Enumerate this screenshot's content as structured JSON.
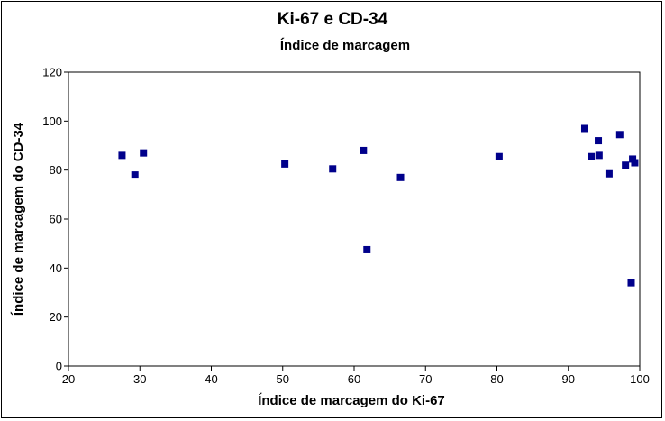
{
  "chart_data": {
    "type": "scatter",
    "title": "Ki-67 e CD-34",
    "subtitle": "Índice de marcagem",
    "xlabel": "Índice de marcagem do Ki-67",
    "ylabel": "Índice de marcagem do CD-34",
    "xlim": [
      20,
      100
    ],
    "ylim": [
      0,
      120
    ],
    "xticks": [
      20,
      30,
      40,
      50,
      60,
      70,
      80,
      90,
      100
    ],
    "yticks": [
      0,
      20,
      40,
      60,
      80,
      100,
      120
    ],
    "grid": false,
    "marker_color": "#00008b",
    "points": [
      {
        "x": 27.5,
        "y": 86
      },
      {
        "x": 29.3,
        "y": 78
      },
      {
        "x": 30.5,
        "y": 87
      },
      {
        "x": 50.3,
        "y": 82.5
      },
      {
        "x": 57.0,
        "y": 80.5
      },
      {
        "x": 61.3,
        "y": 88
      },
      {
        "x": 61.8,
        "y": 47.5
      },
      {
        "x": 66.5,
        "y": 77
      },
      {
        "x": 80.3,
        "y": 85.5
      },
      {
        "x": 92.3,
        "y": 97
      },
      {
        "x": 93.2,
        "y": 85.5
      },
      {
        "x": 94.2,
        "y": 92
      },
      {
        "x": 94.3,
        "y": 86
      },
      {
        "x": 95.7,
        "y": 78.5
      },
      {
        "x": 97.2,
        "y": 94.5
      },
      {
        "x": 98.0,
        "y": 82
      },
      {
        "x": 98.8,
        "y": 34
      },
      {
        "x": 99.0,
        "y": 84.5
      },
      {
        "x": 99.3,
        "y": 83
      }
    ]
  }
}
